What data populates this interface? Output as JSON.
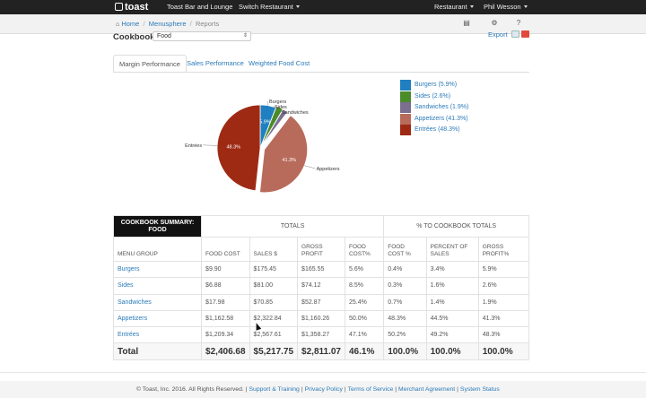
{
  "topbar": {
    "logo": "toast",
    "location": "Toast Bar and Lounge",
    "switch_label": "Switch Restaurant",
    "restaurant_menu": "Restaurant",
    "user_menu": "Phil Wesson"
  },
  "breadcrumb": {
    "home": "Home",
    "menusphere": "Menusphere",
    "current": "Reports"
  },
  "cookbook": {
    "label": "Cookbook:",
    "selected": "Food",
    "export_label": "Export"
  },
  "tabs": [
    {
      "label": "Margin Performance",
      "active": true
    },
    {
      "label": "Sales Performance",
      "active": false
    },
    {
      "label": "Weighted Food Cost",
      "active": false
    }
  ],
  "chart_data": {
    "type": "pie",
    "slices": [
      {
        "label": "Burgers",
        "value": 5.9,
        "color": "#1f7fc0",
        "inner_label": "5.9%"
      },
      {
        "label": "Sides",
        "value": 2.6,
        "color": "#4a8b2a",
        "inner_label": ""
      },
      {
        "label": "Sandwiches",
        "value": 1.9,
        "color": "#7b6f90",
        "inner_label": ""
      },
      {
        "label": "Appetizers",
        "value": 41.3,
        "color": "#b86b5a",
        "inner_label": "41.3%"
      },
      {
        "label": "Entrées",
        "value": 48.3,
        "color": "#9e2a14",
        "inner_label": "48.3%"
      }
    ],
    "legend": [
      "Burgers (5.9%)",
      "Sides (2.6%)",
      "Sandwiches (1.9%)",
      "Appetizers (41.3%)",
      "Entrées (48.3%)"
    ],
    "legend_position": "right"
  },
  "table": {
    "title_line1": "COOKBOOK SUMMARY:",
    "title_line2": "FOOD",
    "group_totals": "TOTALS",
    "group_pct": "% TO COOKBOOK TOTALS",
    "headers": [
      "MENU GROUP",
      "FOOD COST",
      "SALES $",
      "GROSS PROFIT",
      "FOOD COST%",
      "FOOD COST %",
      "PERCENT OF SALES",
      "GROSS PROFIT%"
    ],
    "header_lines": [
      [
        "MENU GROUP",
        ""
      ],
      [
        "FOOD COST",
        ""
      ],
      [
        "SALES $",
        ""
      ],
      [
        "GROSS",
        "PROFIT"
      ],
      [
        "FOOD",
        "COST%"
      ],
      [
        "FOOD",
        "COST %"
      ],
      [
        "PERCENT OF",
        "SALES"
      ],
      [
        "GROSS",
        "PROFIT%"
      ]
    ],
    "rows": [
      [
        "Burgers",
        "$9.90",
        "$175.45",
        "$165.55",
        "5.6%",
        "0.4%",
        "3.4%",
        "5.9%"
      ],
      [
        "Sides",
        "$6.88",
        "$81.00",
        "$74.12",
        "8.5%",
        "0.3%",
        "1.6%",
        "2.6%"
      ],
      [
        "Sandwiches",
        "$17.98",
        "$70.85",
        "$52.87",
        "25.4%",
        "0.7%",
        "1.4%",
        "1.9%"
      ],
      [
        "Appetizers",
        "$1,162.58",
        "$2,322.84",
        "$1,160.26",
        "50.0%",
        "48.3%",
        "44.5%",
        "41.3%"
      ],
      [
        "Entrées",
        "$1,209.34",
        "$2,567.61",
        "$1,358.27",
        "47.1%",
        "50.2%",
        "49.2%",
        "48.3%"
      ]
    ],
    "total": [
      "Total",
      "$2,406.68",
      "$5,217.75",
      "$2,811.07",
      "46.1%",
      "100.0%",
      "100.0%",
      "100.0%"
    ]
  },
  "footer": {
    "copyright": "© Toast, Inc. 2016. All Rights Reserved.",
    "links": [
      "Support & Training",
      "Privacy Policy",
      "Terms of Service",
      "Merchant Agreement",
      "System Status"
    ]
  },
  "colors": {
    "link": "#2a7ab8",
    "topbar": "#222222",
    "title_cell": "#111111"
  }
}
